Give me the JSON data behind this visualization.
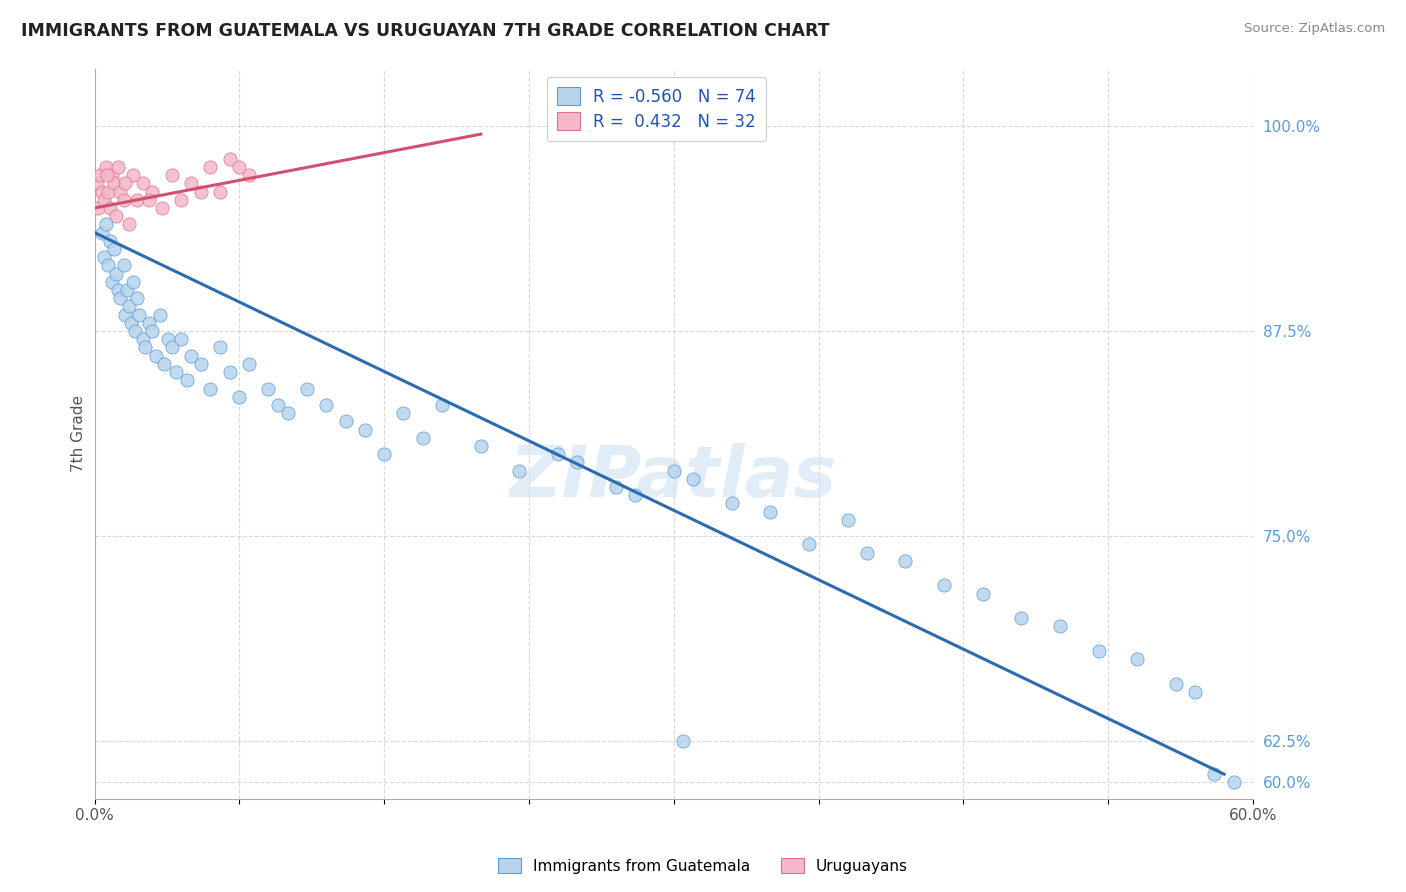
{
  "title": "IMMIGRANTS FROM GUATEMALA VS URUGUAYAN 7TH GRADE CORRELATION CHART",
  "source": "Source: ZipAtlas.com",
  "ylabel": "7th Grade",
  "legend_r_blue": "-0.560",
  "legend_n_blue": "74",
  "legend_r_pink": "0.432",
  "legend_n_pink": "32",
  "blue_color": "#b8d4ed",
  "blue_edge_color": "#5b9bd5",
  "blue_line_color": "#2b6cb0",
  "pink_color": "#f4b8c8",
  "pink_edge_color": "#e07090",
  "pink_line_color": "#d05070",
  "watermark_color": "#c8ddf0",
  "ytick_color": "#5b9bd5",
  "xtick_color": "#555555",
  "grid_color": "#d0d0d0",
  "title_color": "#222222",
  "source_color": "#888888",
  "ylabel_color": "#555555",
  "xlim": [
    0.0,
    60.0
  ],
  "ylim": [
    59.0,
    103.5
  ],
  "ytick_vals": [
    60.0,
    62.5,
    75.0,
    87.5,
    100.0
  ],
  "blue_x": [
    0.4,
    0.5,
    0.6,
    0.7,
    0.8,
    0.9,
    1.0,
    1.1,
    1.2,
    1.3,
    1.5,
    1.6,
    1.7,
    1.8,
    1.9,
    2.0,
    2.1,
    2.2,
    2.3,
    2.5,
    2.6,
    2.8,
    3.0,
    3.2,
    3.4,
    3.6,
    3.8,
    4.0,
    4.2,
    4.5,
    4.8,
    5.0,
    5.5,
    6.0,
    6.5,
    7.0,
    7.5,
    8.0,
    9.0,
    9.5,
    10.0,
    11.0,
    12.0,
    13.0,
    14.0,
    15.0,
    16.0,
    17.0,
    18.0,
    20.0,
    22.0,
    24.0,
    25.0,
    27.0,
    28.0,
    30.0,
    31.0,
    33.0,
    35.0,
    37.0,
    39.0,
    40.0,
    42.0,
    44.0,
    46.0,
    48.0,
    50.0,
    52.0,
    54.0,
    56.0,
    57.0,
    58.0,
    30.5,
    59.0
  ],
  "blue_y": [
    93.5,
    92.0,
    94.0,
    91.5,
    93.0,
    90.5,
    92.5,
    91.0,
    90.0,
    89.5,
    91.5,
    88.5,
    90.0,
    89.0,
    88.0,
    90.5,
    87.5,
    89.5,
    88.5,
    87.0,
    86.5,
    88.0,
    87.5,
    86.0,
    88.5,
    85.5,
    87.0,
    86.5,
    85.0,
    87.0,
    84.5,
    86.0,
    85.5,
    84.0,
    86.5,
    85.0,
    83.5,
    85.5,
    84.0,
    83.0,
    82.5,
    84.0,
    83.0,
    82.0,
    81.5,
    80.0,
    82.5,
    81.0,
    83.0,
    80.5,
    79.0,
    80.0,
    79.5,
    78.0,
    77.5,
    79.0,
    78.5,
    77.0,
    76.5,
    74.5,
    76.0,
    74.0,
    73.5,
    72.0,
    71.5,
    70.0,
    69.5,
    68.0,
    67.5,
    66.0,
    65.5,
    60.5,
    62.5,
    60.0
  ],
  "pink_x": [
    0.1,
    0.2,
    0.3,
    0.4,
    0.5,
    0.6,
    0.7,
    0.8,
    0.9,
    1.0,
    1.1,
    1.2,
    1.3,
    1.5,
    1.8,
    2.0,
    2.2,
    2.5,
    3.0,
    3.5,
    4.0,
    4.5,
    5.0,
    5.5,
    6.0,
    6.5,
    7.0,
    7.5,
    8.0,
    2.8,
    1.6,
    0.65
  ],
  "pink_y": [
    96.5,
    95.0,
    97.0,
    96.0,
    95.5,
    97.5,
    96.0,
    95.0,
    97.0,
    96.5,
    94.5,
    97.5,
    96.0,
    95.5,
    94.0,
    97.0,
    95.5,
    96.5,
    96.0,
    95.0,
    97.0,
    95.5,
    96.5,
    96.0,
    97.5,
    96.0,
    98.0,
    97.5,
    97.0,
    95.5,
    96.5,
    97.0
  ],
  "blue_line_x0": 0.0,
  "blue_line_x1": 58.5,
  "blue_line_y0": 93.5,
  "blue_line_y1": 60.5,
  "pink_line_x0": 0.0,
  "pink_line_x1": 20.0,
  "pink_line_y0": 95.0,
  "pink_line_y1": 99.5
}
